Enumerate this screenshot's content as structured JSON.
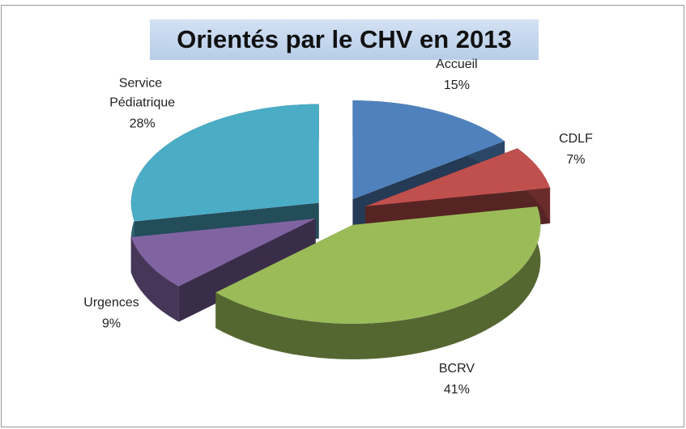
{
  "chart_data": {
    "type": "pie3d",
    "title": "Orientés par le CHV en 2013",
    "categories": [
      "Accueil",
      "CDLF",
      "BCRV",
      "Urgences",
      "Service Pédiatrique"
    ],
    "values": [
      15,
      7,
      41,
      9,
      28
    ],
    "value_labels": [
      "15%",
      "7%",
      "41%",
      "9%",
      "28%"
    ],
    "colors": [
      "#4f81bd",
      "#c0504d",
      "#9bbb59",
      "#8064a2",
      "#4bacc6"
    ]
  }
}
